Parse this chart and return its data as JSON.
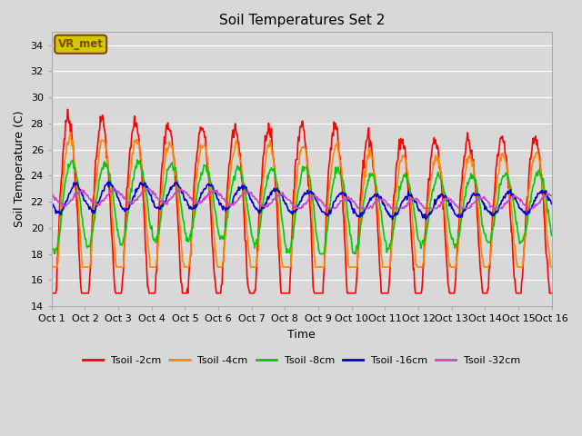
{
  "title": "Soil Temperatures Set 2",
  "xlabel": "Time",
  "ylabel": "Soil Temperature (C)",
  "ylim": [
    14,
    35
  ],
  "yticks": [
    14,
    16,
    18,
    20,
    22,
    24,
    26,
    28,
    30,
    32,
    34
  ],
  "fig_bg_color": "#d8d8d8",
  "plot_bg_color": "#d8d8d8",
  "series_colors": {
    "Tsoil -2cm": "#ff0000",
    "Tsoil -4cm": "#ff8800",
    "Tsoil -8cm": "#00cc00",
    "Tsoil -16cm": "#0000cc",
    "Tsoil -32cm": "#cc44cc"
  },
  "annotation_box": {
    "text": "VR_met",
    "facecolor": "#cccc00",
    "edgecolor": "#884400",
    "textcolor": "#884400"
  },
  "xtick_labels": [
    "Oct 1",
    "Oct 2",
    "Oct 3",
    "Oct 4",
    "Oct 5",
    "Oct 6",
    "Oct 7",
    "Oct 8",
    "Oct 9",
    "Oct 10",
    "Oct 11",
    "Oct 12",
    "Oct 13",
    "Oct 14",
    "Oct 15",
    "Oct 16"
  ],
  "line_width": 1.2,
  "figsize": [
    6.4,
    4.8
  ],
  "dpi": 100
}
